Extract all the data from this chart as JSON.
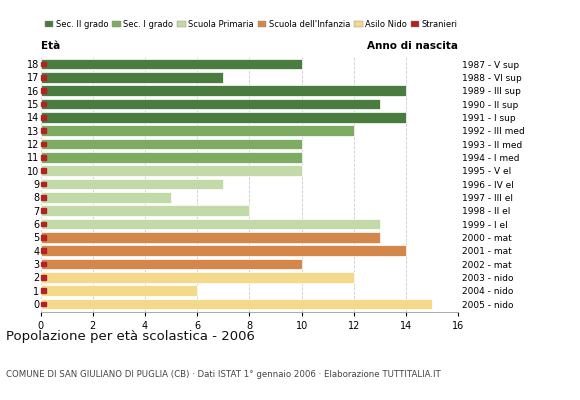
{
  "ages": [
    18,
    17,
    16,
    15,
    14,
    13,
    12,
    11,
    10,
    9,
    8,
    7,
    6,
    5,
    4,
    3,
    2,
    1,
    0
  ],
  "values": [
    10,
    7,
    14,
    13,
    14,
    12,
    10,
    10,
    10,
    7,
    5,
    8,
    13,
    13,
    14,
    10,
    12,
    6,
    15
  ],
  "colors": [
    "#4a7c3f",
    "#4a7c3f",
    "#4a7c3f",
    "#4a7c3f",
    "#4a7c3f",
    "#7dab61",
    "#7dab61",
    "#7dab61",
    "#c2d9a8",
    "#c2d9a8",
    "#c2d9a8",
    "#c2d9a8",
    "#c2d9a8",
    "#d4874a",
    "#d4874a",
    "#d4874a",
    "#f5d98a",
    "#f5d98a",
    "#f5d98a"
  ],
  "right_labels": [
    "1987 - V sup",
    "1988 - VI sup",
    "1989 - III sup",
    "1990 - II sup",
    "1991 - I sup",
    "1992 - III med",
    "1993 - II med",
    "1994 - I med",
    "1995 - V el",
    "1996 - IV el",
    "1997 - III el",
    "1998 - II el",
    "1999 - I el",
    "2000 - mat",
    "2001 - mat",
    "2002 - mat",
    "2003 - nido",
    "2004 - nido",
    "2005 - nido"
  ],
  "stranger_color": "#b22222",
  "legend_labels": [
    "Sec. II grado",
    "Sec. I grado",
    "Scuola Primaria",
    "Scuola dell'Infanzia",
    "Asilo Nido",
    "Stranieri"
  ],
  "legend_colors": [
    "#4a7c3f",
    "#7dab61",
    "#c2d9a8",
    "#d4874a",
    "#f5d98a",
    "#b22222"
  ],
  "title": "Popolazione per età scolastica - 2006",
  "subtitle": "COMUNE DI SAN GIULIANO DI PUGLIA (CB) · Dati ISTAT 1° gennaio 2006 · Elaborazione TUTTITALIA.IT",
  "xlabel_left": "Età",
  "xlabel_right": "Anno di nascita",
  "xlim": [
    0,
    16
  ],
  "background_color": "#ffffff",
  "grid_color": "#cccccc"
}
